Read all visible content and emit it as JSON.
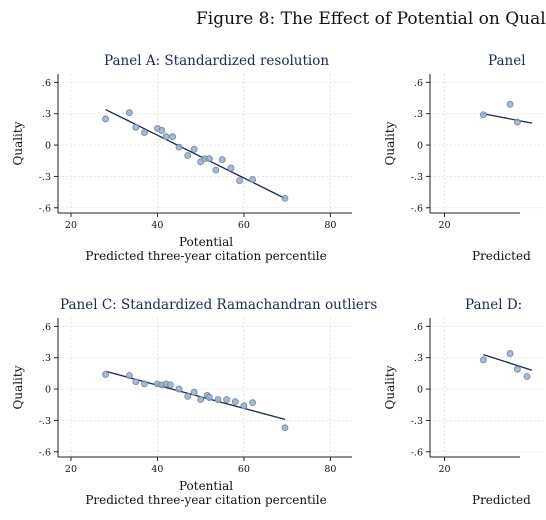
{
  "figure": {
    "title": "Figure 8: The Effect of Potential on Qual"
  },
  "chart_data": [
    {
      "type": "scatter",
      "panel": "A",
      "title": "Panel A: Standardized resolution",
      "xlabel": "Potential",
      "xlabel2": "Predicted three-year citation percentile",
      "ylabel": "Quality",
      "xlim": [
        17,
        85
      ],
      "ylim": [
        -0.65,
        0.68
      ],
      "xticks": [
        "20",
        "40",
        "60",
        "80"
      ],
      "yticks": [
        ".6",
        ".3",
        "0",
        "-.3",
        "-.6"
      ],
      "grid": true,
      "points": [
        {
          "x": 28,
          "y": 0.25
        },
        {
          "x": 33.5,
          "y": 0.31
        },
        {
          "x": 35,
          "y": 0.17
        },
        {
          "x": 37,
          "y": 0.12
        },
        {
          "x": 40,
          "y": 0.16
        },
        {
          "x": 41,
          "y": 0.14
        },
        {
          "x": 42,
          "y": 0.08
        },
        {
          "x": 43.5,
          "y": 0.08
        },
        {
          "x": 45,
          "y": -0.02
        },
        {
          "x": 47,
          "y": -0.1
        },
        {
          "x": 48.5,
          "y": -0.04
        },
        {
          "x": 50,
          "y": -0.16
        },
        {
          "x": 51,
          "y": -0.13
        },
        {
          "x": 52,
          "y": -0.13
        },
        {
          "x": 53.5,
          "y": -0.24
        },
        {
          "x": 55,
          "y": -0.14
        },
        {
          "x": 57,
          "y": -0.22
        },
        {
          "x": 59,
          "y": -0.34
        },
        {
          "x": 62,
          "y": -0.33
        },
        {
          "x": 69.5,
          "y": -0.51
        }
      ],
      "fit": {
        "x": [
          28,
          69.5
        ],
        "y": [
          0.34,
          -0.51
        ]
      }
    },
    {
      "type": "scatter",
      "panel": "B",
      "title": "Panel",
      "xlabel": "",
      "xlabel2": "Predicted",
      "ylabel": "Quality",
      "xlim": [
        17,
        85
      ],
      "ylim": [
        -0.65,
        0.68
      ],
      "xticks": [
        "20"
      ],
      "yticks": [
        ".6",
        ".3",
        "0",
        "-.3",
        "-.6"
      ],
      "grid": true,
      "points": [
        {
          "x": 28,
          "y": 0.29
        },
        {
          "x": 33.5,
          "y": 0.39
        },
        {
          "x": 35,
          "y": 0.22
        }
      ],
      "fit": {
        "x": [
          28,
          38
        ],
        "y": [
          0.3,
          0.21
        ]
      }
    },
    {
      "type": "scatter",
      "panel": "C",
      "title": "Panel C: Standardized Ramachandran outliers",
      "xlabel": "Potential",
      "xlabel2": "Predicted three-year citation percentile",
      "ylabel": "Quality",
      "xlim": [
        17,
        85
      ],
      "ylim": [
        -0.65,
        0.68
      ],
      "xticks": [
        "20",
        "40",
        "60",
        "80"
      ],
      "yticks": [
        ".6",
        ".3",
        "0",
        "-.3",
        "-.6"
      ],
      "grid": true,
      "points": [
        {
          "x": 28,
          "y": 0.14
        },
        {
          "x": 33.5,
          "y": 0.13
        },
        {
          "x": 35,
          "y": 0.07
        },
        {
          "x": 37,
          "y": 0.05
        },
        {
          "x": 40,
          "y": 0.05
        },
        {
          "x": 41,
          "y": 0.04
        },
        {
          "x": 42,
          "y": 0.05
        },
        {
          "x": 43,
          "y": 0.04
        },
        {
          "x": 45,
          "y": 0.0
        },
        {
          "x": 47,
          "y": -0.07
        },
        {
          "x": 48.5,
          "y": -0.03
        },
        {
          "x": 50,
          "y": -0.1
        },
        {
          "x": 51.5,
          "y": -0.06
        },
        {
          "x": 52,
          "y": -0.08
        },
        {
          "x": 54,
          "y": -0.1
        },
        {
          "x": 56,
          "y": -0.1
        },
        {
          "x": 58,
          "y": -0.12
        },
        {
          "x": 60,
          "y": -0.16
        },
        {
          "x": 62,
          "y": -0.13
        },
        {
          "x": 69.5,
          "y": -0.37
        }
      ],
      "fit": {
        "x": [
          28,
          69.5
        ],
        "y": [
          0.17,
          -0.29
        ]
      }
    },
    {
      "type": "scatter",
      "panel": "D",
      "title": "Panel D:",
      "xlabel": "",
      "xlabel2": "Predicted",
      "ylabel": "Quality",
      "xlim": [
        17,
        85
      ],
      "ylim": [
        -0.65,
        0.68
      ],
      "xticks": [
        "20"
      ],
      "yticks": [
        ".6",
        ".3",
        "0",
        "-.3",
        "-.6"
      ],
      "grid": true,
      "points": [
        {
          "x": 28,
          "y": 0.28
        },
        {
          "x": 33.5,
          "y": 0.34
        },
        {
          "x": 35,
          "y": 0.19
        },
        {
          "x": 37,
          "y": 0.12
        }
      ],
      "fit": {
        "x": [
          28,
          38
        ],
        "y": [
          0.33,
          0.18
        ]
      }
    }
  ],
  "colors": {
    "marker_fill": "#98aec9",
    "marker_stroke": "#6e84a3",
    "fit_line": "#1a2a52",
    "axis": "#222222",
    "grid": "#d7d7d7",
    "title": "#1a2a52"
  }
}
